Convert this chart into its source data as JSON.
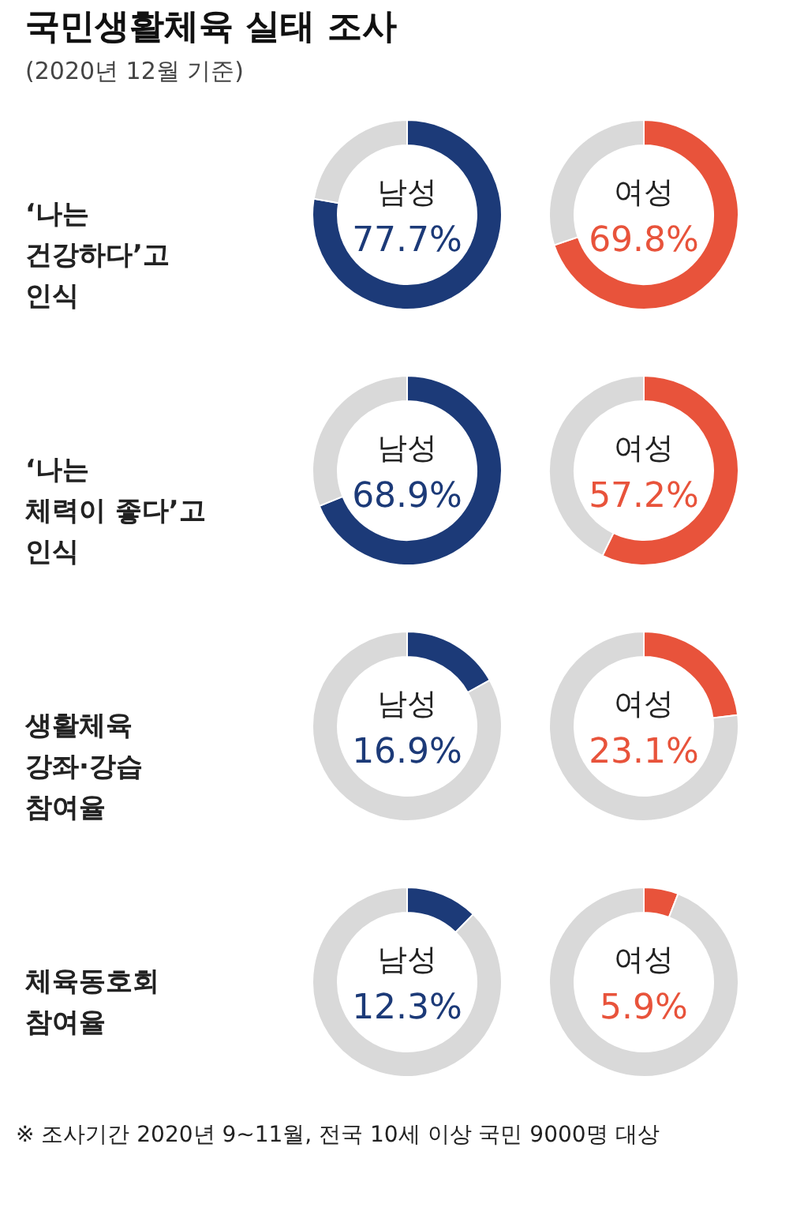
{
  "chart_data": [
    {
      "type": "donut",
      "title": "국민생활체육 실태 조사",
      "subtitle": "(2020년 12월 기준)",
      "ylabel": "‘나는\n건강하다’고\n인식",
      "categories": [
        "남성",
        null
      ],
      "values": [
        77.7,
        22.3
      ],
      "value_labels": [
        "77.7%",
        null
      ],
      "colors": [
        "#1c3a78",
        "#d9d9d9"
      ]
    },
    {
      "type": "donut",
      "categories": [
        "여성",
        null
      ],
      "values": [
        69.8,
        30.2
      ],
      "value_labels": [
        "69.8%",
        null
      ],
      "colors": [
        "#e8533b",
        "#d9d9d9"
      ]
    },
    {
      "type": "donut",
      "ylabel": "‘나는\n체력이 좋다’고\n인식",
      "categories": [
        "남성",
        null
      ],
      "values": [
        68.9,
        31.1
      ],
      "value_labels": [
        "68.9%",
        null
      ],
      "colors": [
        "#1c3a78",
        "#d9d9d9"
      ]
    },
    {
      "type": "donut",
      "categories": [
        "여성",
        null
      ],
      "values": [
        57.2,
        42.8
      ],
      "value_labels": [
        "57.2%",
        null
      ],
      "colors": [
        "#e8533b",
        "#d9d9d9"
      ]
    },
    {
      "type": "donut",
      "ylabel": "생활체육\n강좌·강습\n참여율",
      "categories": [
        "남성",
        null
      ],
      "values": [
        16.9,
        83.1
      ],
      "value_labels": [
        "16.9%",
        null
      ],
      "colors": [
        "#1c3a78",
        "#d9d9d9"
      ]
    },
    {
      "type": "donut",
      "categories": [
        "여성",
        null
      ],
      "values": [
        23.1,
        76.9
      ],
      "value_labels": [
        "23.1%",
        null
      ],
      "colors": [
        "#e8533b",
        "#d9d9d9"
      ]
    },
    {
      "type": "donut",
      "ylabel": "체육동호회\n참여율",
      "annotations": [
        "※ 조사기간 2020년 9~11월, 전국 10세 이상 국민 9000명 대상"
      ],
      "categories": [
        "남성",
        null
      ],
      "values": [
        12.3,
        87.7
      ],
      "value_labels": [
        "12.3%",
        null
      ],
      "colors": [
        "#1c3a78",
        "#d9d9d9"
      ]
    },
    {
      "type": "donut",
      "categories": [
        "여성",
        null
      ],
      "values": [
        5.9,
        94.1
      ],
      "value_labels": [
        "5.9%",
        null
      ],
      "colors": [
        "#e8533b",
        "#d9d9d9"
      ]
    }
  ]
}
